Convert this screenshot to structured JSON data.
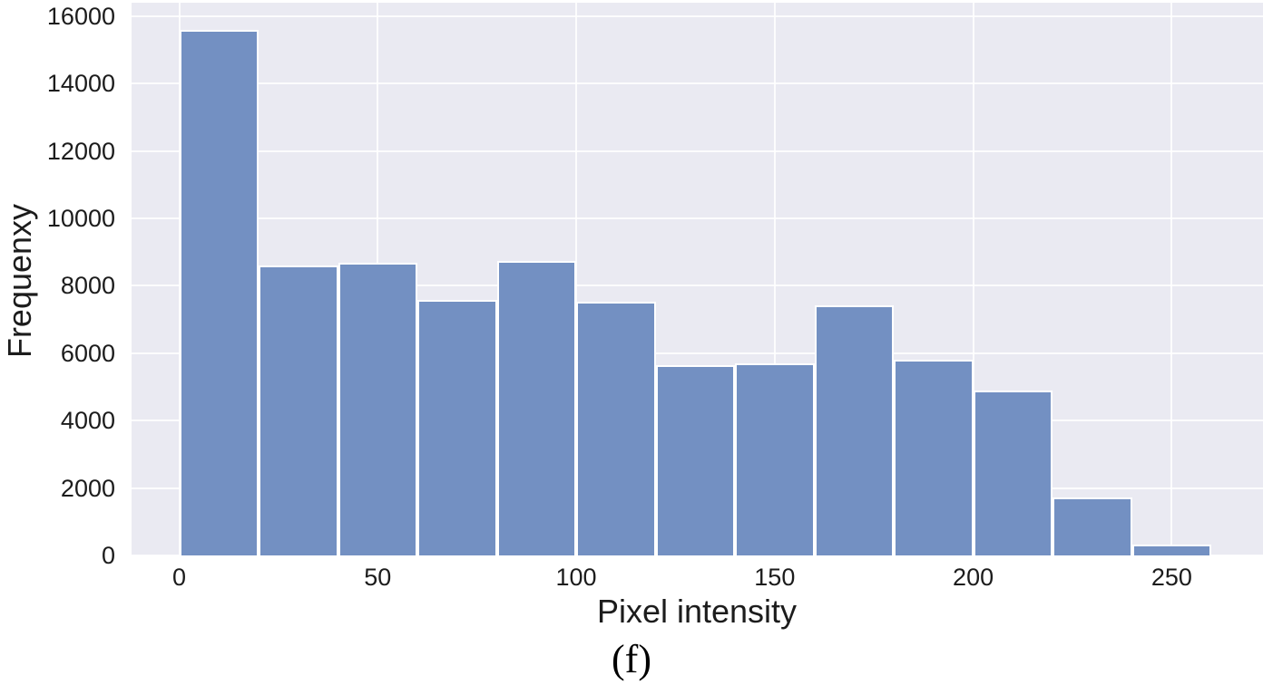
{
  "figure": {
    "caption": "(f)"
  },
  "chart_data": {
    "type": "bar",
    "subtype": "histogram",
    "title": "",
    "xlabel": "Pixel intensity",
    "ylabel": "Frequenxy",
    "caption": "(f)",
    "bin_width": 20,
    "bin_starts": [
      0,
      20,
      40,
      60,
      80,
      100,
      120,
      140,
      160,
      180,
      200,
      220,
      240
    ],
    "values": [
      15600,
      8600,
      8680,
      7580,
      8740,
      7530,
      5640,
      5710,
      7420,
      5800,
      4900,
      1730,
      320
    ],
    "x_ticks": [
      0,
      50,
      100,
      150,
      200,
      250
    ],
    "y_ticks": [
      0,
      2000,
      4000,
      6000,
      8000,
      10000,
      12000,
      14000,
      16000
    ],
    "xlim": [
      -12,
      273
    ],
    "ylim": [
      0,
      16400
    ],
    "grid": true,
    "legend": false,
    "colors": {
      "bar_fill": "#7390c2",
      "bar_edge": "#ffffff",
      "plot_bg": "#eaeaf2",
      "grid": "#ffffff",
      "text": "#1c1c1c"
    }
  }
}
